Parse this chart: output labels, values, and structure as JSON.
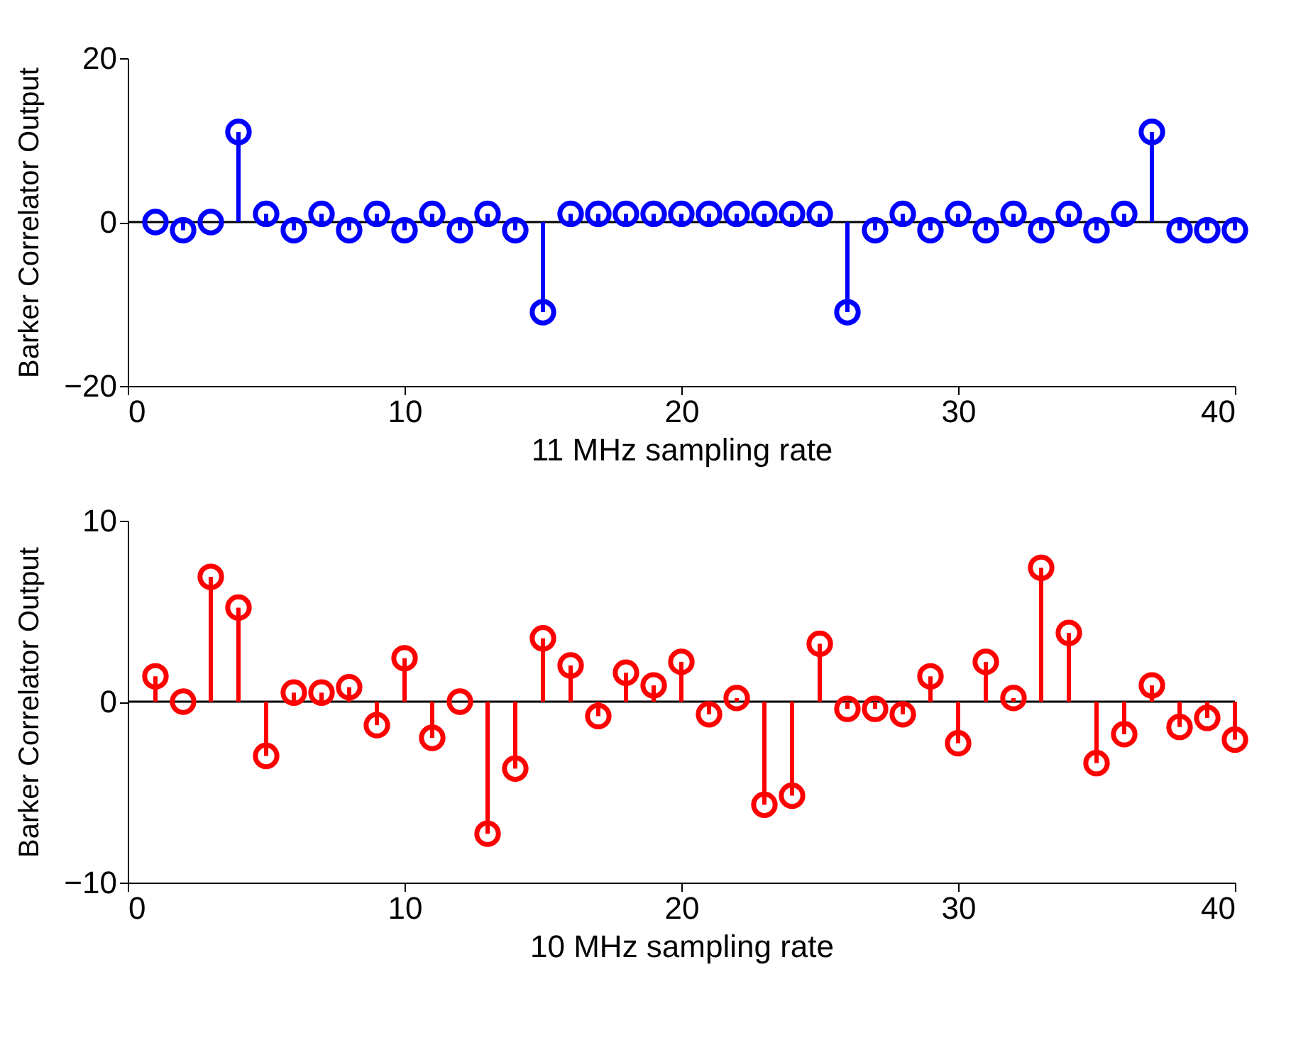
{
  "chart_data": [
    {
      "type": "lollipop",
      "xlabel": "11 MHz sampling rate",
      "ylabel": "Barker Correlator Output",
      "x": [
        1,
        2,
        3,
        4,
        5,
        6,
        7,
        8,
        9,
        10,
        11,
        12,
        13,
        14,
        15,
        16,
        17,
        18,
        19,
        20,
        21,
        22,
        23,
        24,
        25,
        26,
        27,
        28,
        29,
        30,
        31,
        32,
        33,
        34,
        35,
        36,
        37,
        38,
        39,
        40
      ],
      "series": [
        {
          "color": "#0000ff",
          "values": [
            0,
            -1,
            0,
            11,
            1,
            -1,
            1,
            -1,
            1,
            -1,
            1,
            -1,
            1,
            -1,
            -11,
            1,
            1,
            1,
            1,
            1,
            1,
            1,
            1,
            1,
            1,
            -11,
            -1,
            1,
            -1,
            1,
            -1,
            1,
            -1,
            1,
            -1,
            1,
            11,
            -1,
            -1,
            -1
          ]
        }
      ],
      "xlim": [
        0,
        40
      ],
      "xticks": [
        0,
        10,
        20,
        30,
        40
      ],
      "ylim": [
        -20,
        20
      ],
      "yticks": [
        -20,
        0,
        20
      ],
      "marker": "circle",
      "grid": false,
      "ref_lines": [
        {
          "axis": "y",
          "value": 0,
          "color": "#000000"
        }
      ]
    },
    {
      "type": "lollipop",
      "xlabel": "10 MHz sampling rate",
      "ylabel": "Barker Correlator Output",
      "x": [
        1,
        2,
        3,
        4,
        5,
        6,
        7,
        8,
        9,
        10,
        11,
        12,
        13,
        14,
        15,
        16,
        17,
        18,
        19,
        20,
        21,
        22,
        23,
        24,
        25,
        26,
        27,
        28,
        29,
        30,
        31,
        32,
        33,
        34,
        35,
        36,
        37,
        38,
        39,
        40
      ],
      "series": [
        {
          "color": "#ff0000",
          "values": [
            1.4,
            0,
            6.9,
            5.2,
            -3.0,
            0.5,
            0.5,
            0.8,
            -1.3,
            2.4,
            -2.0,
            0,
            -7.3,
            -3.7,
            3.5,
            2.0,
            -0.8,
            1.6,
            0.9,
            2.2,
            -0.7,
            0.2,
            -5.7,
            -5.2,
            3.2,
            -0.4,
            -0.4,
            -0.7,
            1.4,
            -2.3,
            2.2,
            0.2,
            7.4,
            3.8,
            -3.4,
            -1.8,
            0.9,
            -1.4,
            -0.9,
            -2.1
          ]
        }
      ],
      "xlim": [
        0,
        40
      ],
      "xticks": [
        0,
        10,
        20,
        30,
        40
      ],
      "ylim": [
        -10,
        10
      ],
      "yticks": [
        -10,
        0,
        10
      ],
      "marker": "circle",
      "grid": false,
      "ref_lines": [
        {
          "axis": "y",
          "value": 0,
          "color": "#000000"
        }
      ]
    }
  ]
}
